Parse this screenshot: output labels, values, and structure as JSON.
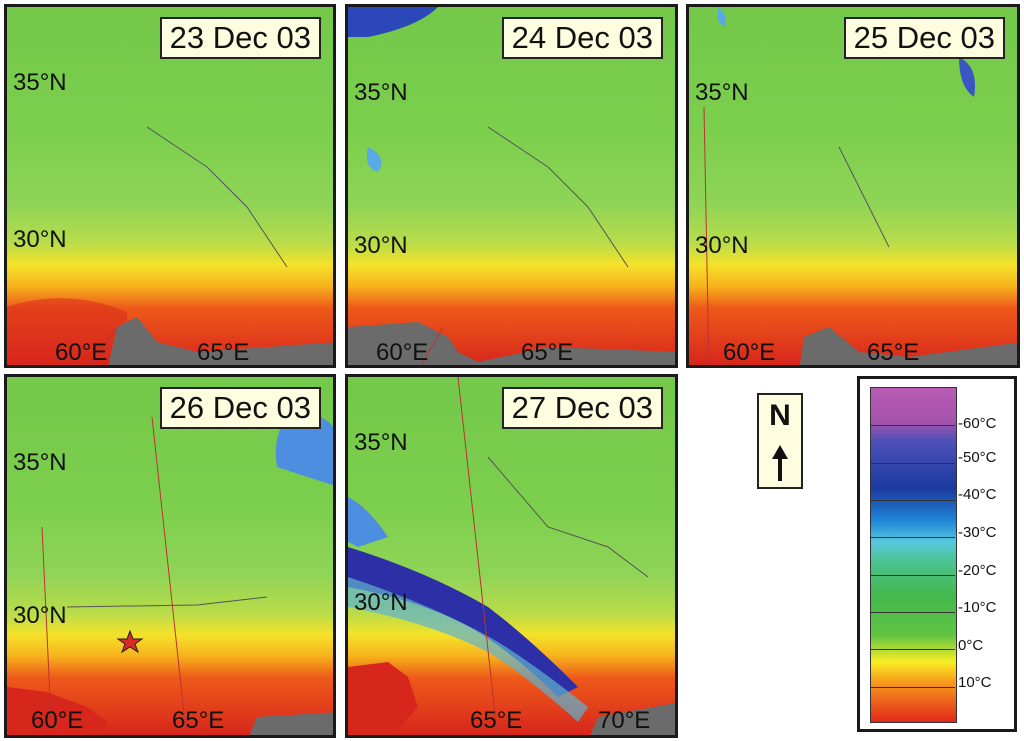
{
  "panels": [
    {
      "date": "23 Dec 03",
      "lat_labels": [
        "35°N",
        "30°N"
      ],
      "lon_labels": [
        "60°E",
        "65°E"
      ]
    },
    {
      "date": "24 Dec 03",
      "lat_labels": [
        "35°N",
        "30°N"
      ],
      "lon_labels": [
        "60°E",
        "65°E"
      ]
    },
    {
      "date": "25 Dec 03",
      "lat_labels": [
        "35°N",
        "30°N"
      ],
      "lon_labels": [
        "60°E",
        "65°E"
      ]
    },
    {
      "date": "26 Dec 03",
      "lat_labels": [
        "35°N",
        "30°N"
      ],
      "lon_labels": [
        "60°E",
        "65°E"
      ]
    },
    {
      "date": "27 Dec 03",
      "lat_labels": [
        "35°N",
        "30°N"
      ],
      "lon_labels": [
        "65°E",
        "70°E"
      ]
    }
  ],
  "north": {
    "label": "N"
  },
  "legend": {
    "labels": [
      "-60°C",
      "-50°C",
      "-40°C",
      "-30°C",
      "-20°C",
      "-10°C",
      "0°C",
      "10°C"
    ]
  }
}
